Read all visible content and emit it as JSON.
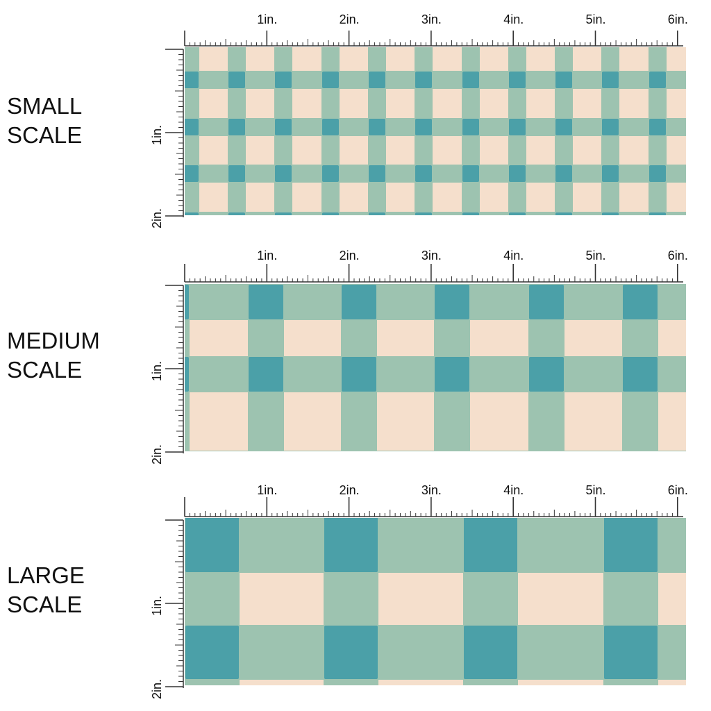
{
  "colors": {
    "cream": "#F5DFCC",
    "sage": "#9DC3B0",
    "teal": "#4BA0A8",
    "ruler": "#333333"
  },
  "rows": [
    {
      "key": "small",
      "label_lines": [
        "SMALL",
        "SCALE"
      ],
      "top_ticks": [
        "1in.",
        "2in.",
        "3in.",
        "4in.",
        "5in.",
        "6in."
      ],
      "side_ticks": [
        "1in.",
        "2in."
      ]
    },
    {
      "key": "medium",
      "label_lines": [
        "MEDIUM",
        "SCALE"
      ],
      "top_ticks": [
        "1in.",
        "2in.",
        "3in.",
        "4in.",
        "5in.",
        "6in."
      ],
      "side_ticks": [
        "1in.",
        "2in."
      ]
    },
    {
      "key": "large",
      "label_lines": [
        "LARGE",
        "SCALE"
      ],
      "top_ticks": [
        "1in.",
        "2in.",
        "3in.",
        "4in.",
        "5in.",
        "6in."
      ],
      "side_ticks": [
        "1in.",
        "2in."
      ]
    }
  ]
}
